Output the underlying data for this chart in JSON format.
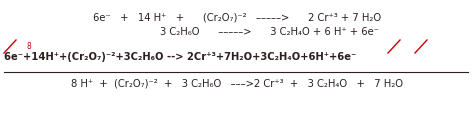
{
  "bg_color": "#ffffff",
  "text_color": "#2b2020",
  "red_color": "#cc0000",
  "fs": 7.2,
  "line1": "6e⁻   +   14 H⁺   +      (Cr₂O₇)⁻²   —————>      2 Cr⁺³ + 7 H₂O",
  "line2": "3 C₂H₆O      —————>      3 C₂H₄O + 6 H⁺ + 6e⁻",
  "line3": "6e⁻+14H⁺+(Cr₂O₇)⁻²+3C₂H₆O --> 2Cr⁺³+7H₂O+3C₂H₄O+6H⁺+6e⁻",
  "line4": "8 H⁺  •  (Cr₂O₇)⁻²  +   3 C₂H₆O   ———>2 Cr⁺³   +   3 C₂H₄O   +   7 H₂O",
  "line4b": "8 H⁺  +  (Cr₂O₇)⁻²  +   3 C₂H₆O   ---->  2 Cr⁺³  +   3 C₂H₄O   +   7 H₂O"
}
